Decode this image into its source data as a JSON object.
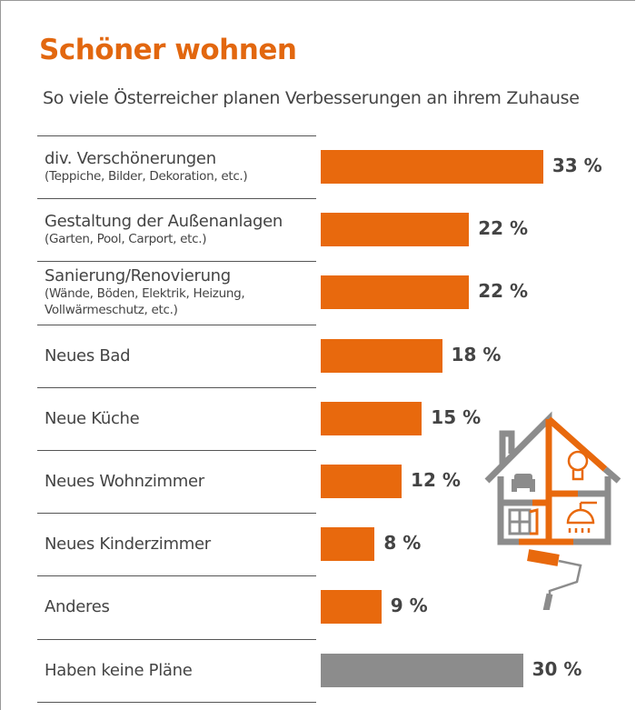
{
  "title": "Schöner wohnen",
  "subtitle": "So viele Österreicher planen Verbesserungen an ihrem Zuhause",
  "colors": {
    "accent": "#e8690d",
    "neutral": "#8c8c8c",
    "title": "#e2670f"
  },
  "chart_data": {
    "type": "bar",
    "orientation": "horizontal",
    "title": "Schöner wohnen",
    "subtitle": "So viele Österreicher planen Verbesserungen an ihrem Zuhause",
    "categories": [
      {
        "label": "div. Verschönerungen",
        "sub": "(Teppiche, Bilder, Dekoration, etc.)",
        "value": 33,
        "value_label": "33 %",
        "color": "#e8690d"
      },
      {
        "label": "Gestaltung der Außenanlagen",
        "sub": "(Garten, Pool, Carport, etc.)",
        "value": 22,
        "value_label": "22 %",
        "color": "#e8690d"
      },
      {
        "label": "Sanierung/Renovierung",
        "sub": "(Wände, Böden, Elektrik, Heizung, Vollwärmeschutz, etc.)",
        "value": 22,
        "value_label": "22 %",
        "color": "#e8690d"
      },
      {
        "label": "Neues Bad",
        "sub": "",
        "value": 18,
        "value_label": "18 %",
        "color": "#e8690d"
      },
      {
        "label": "Neue Küche",
        "sub": "",
        "value": 15,
        "value_label": "15 %",
        "color": "#e8690d"
      },
      {
        "label": "Neues Wohnzimmer",
        "sub": "",
        "value": 12,
        "value_label": "12 %",
        "color": "#e8690d"
      },
      {
        "label": "Neues Kinderzimmer",
        "sub": "",
        "value": 8,
        "value_label": "8 %",
        "color": "#e8690d"
      },
      {
        "label": "Anderes",
        "sub": "",
        "value": 9,
        "value_label": "9 %",
        "color": "#e8690d"
      },
      {
        "label": "Haben keine Pläne",
        "sub": "",
        "value": 30,
        "value_label": "30 %",
        "color": "#8c8c8c"
      }
    ],
    "unit": "%",
    "xlim": [
      0,
      33
    ],
    "grid": false
  },
  "illustration": {
    "icons": [
      "house-icon",
      "armchair-icon",
      "lightbulb-icon",
      "window-icon",
      "shower-icon",
      "paint-roller-icon"
    ]
  }
}
